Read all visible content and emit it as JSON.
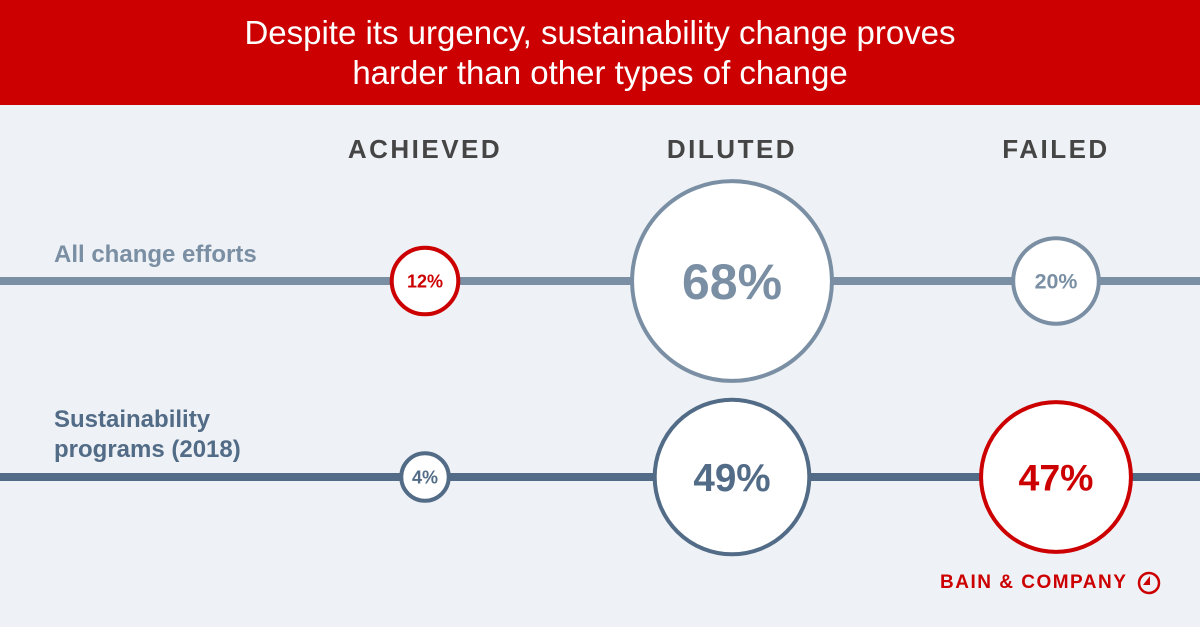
{
  "chart_data": {
    "type": "bubble",
    "title": "Despite its urgency, sustainability change proves harder than other types of change",
    "title_lines": [
      "Despite its urgency, sustainability change proves",
      "harder than other types of change"
    ],
    "categories": [
      "ACHIEVED",
      "DILUTED",
      "FAILED"
    ],
    "series": [
      {
        "name": "All change efforts",
        "name_lines": [
          "All change efforts"
        ],
        "values": [
          12,
          68,
          20
        ],
        "labels": [
          "12%",
          "68%",
          "20%"
        ],
        "line_color": "#7a8fa3"
      },
      {
        "name": "Sustainability programs (2018)",
        "name_lines": [
          "Sustainability",
          "programs (2018)"
        ],
        "values": [
          4,
          49,
          47
        ],
        "labels": [
          "4%",
          "49%",
          "47%"
        ],
        "line_color": "#526b86"
      }
    ],
    "highlight_color": "#cc0000",
    "highlight": [
      [
        0
      ],
      [
        2
      ]
    ]
  },
  "brand": {
    "name": "BAIN & COMPANY"
  },
  "colors": {
    "banner": "#cc0000",
    "background": "#eef1f5",
    "heading": "#454545"
  }
}
